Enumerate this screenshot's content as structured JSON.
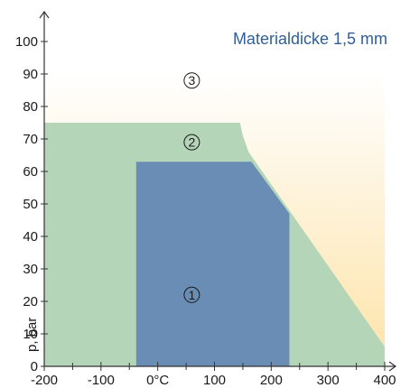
{
  "chart_data": {
    "type": "area",
    "title": "Materialdicke 1,5 mm",
    "xlabel": "",
    "ylabel": "p, bar",
    "xlim": [
      -200,
      400
    ],
    "ylim": [
      0,
      105
    ],
    "x_ticks": [
      {
        "value": -200,
        "label": "-200"
      },
      {
        "value": -100,
        "label": "-100"
      },
      {
        "value": 0,
        "label": "0°C"
      },
      {
        "value": 100,
        "label": "100"
      },
      {
        "value": 200,
        "label": "200"
      },
      {
        "value": 300,
        "label": "300"
      },
      {
        "value": 400,
        "label": "400"
      }
    ],
    "y_ticks": [
      {
        "value": 0,
        "label": "0"
      },
      {
        "value": 10,
        "label": "10"
      },
      {
        "value": 20,
        "label": "20"
      },
      {
        "value": 30,
        "label": "30"
      },
      {
        "value": 40,
        "label": "40"
      },
      {
        "value": 50,
        "label": "50"
      },
      {
        "value": 60,
        "label": "60"
      },
      {
        "value": 70,
        "label": "70"
      },
      {
        "value": 80,
        "label": "80"
      },
      {
        "value": 90,
        "label": "90"
      },
      {
        "value": 100,
        "label": "100"
      }
    ],
    "regions": [
      {
        "label": "3",
        "color": "#fde3a8",
        "polygon": [
          [
            -200,
            0
          ],
          [
            400,
            0
          ],
          [
            400,
            90
          ],
          [
            -200,
            90
          ]
        ],
        "label_pos": [
          60,
          88
        ]
      },
      {
        "label": "2",
        "color": "#b5d5b9",
        "polygon": [
          [
            -200,
            0
          ],
          [
            400,
            0
          ],
          [
            400,
            6
          ],
          [
            160,
            66
          ],
          [
            150,
            71
          ],
          [
            145,
            75
          ],
          [
            -200,
            75
          ]
        ],
        "label_pos": [
          60,
          69
        ]
      },
      {
        "label": "1",
        "color": "#6a8db5",
        "polygon": [
          [
            -38,
            0
          ],
          [
            232,
            0
          ],
          [
            232,
            47
          ],
          [
            165,
            63
          ],
          [
            -38,
            63
          ]
        ],
        "label_pos": [
          60,
          22
        ]
      }
    ]
  }
}
